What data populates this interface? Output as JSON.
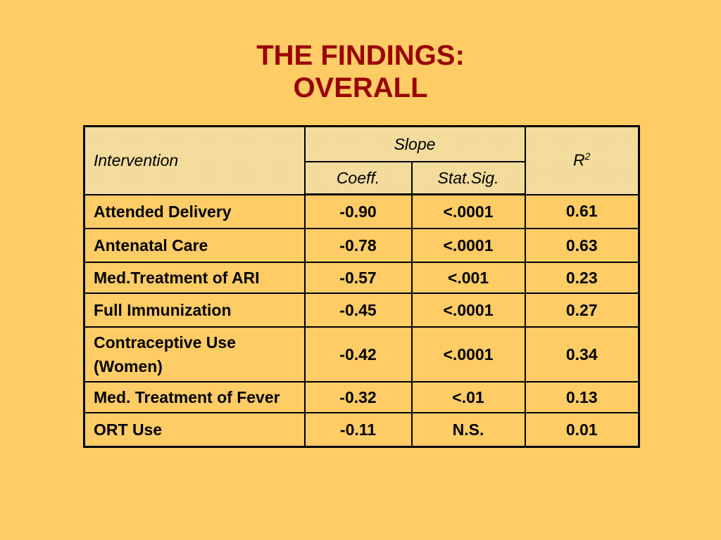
{
  "title": {
    "line1": "THE FINDINGS:",
    "line2": "OVERALL"
  },
  "table": {
    "headers": {
      "intervention": "Intervention",
      "slope": "Slope",
      "coeff": "Coeff.",
      "stat_sig": "Stat.Sig.",
      "r2_base": "R",
      "r2_sup": "2"
    },
    "rows": [
      {
        "intervention": "Attended Delivery",
        "coeff": "-0.90",
        "stat_sig": "<.0001",
        "r2": "0.61"
      },
      {
        "intervention": "Antenatal Care",
        "coeff": "-0.78",
        "stat_sig": "<.0001",
        "r2": "0.63"
      },
      {
        "intervention": "Med.Treatment of ARI",
        "coeff": "-0.57",
        "stat_sig": "<.001",
        "r2": "0.23"
      },
      {
        "intervention": "Full Immunization",
        "coeff": "-0.45",
        "stat_sig": "<.0001",
        "r2": "0.27"
      },
      {
        "intervention": "Contraceptive Use (Women)",
        "coeff": "-0.42",
        "stat_sig": "<.0001",
        "r2": "0.34"
      },
      {
        "intervention": "Med. Treatment of Fever",
        "coeff": "-0.32",
        "stat_sig": "<.01",
        "r2": "0.13"
      },
      {
        "intervention": "ORT Use",
        "coeff": "-0.11",
        "stat_sig": "N.S.",
        "r2": "0.01"
      }
    ]
  },
  "colors": {
    "background": "#FFCC66",
    "title": "#990000",
    "header_fill": "#F7E3A6"
  }
}
